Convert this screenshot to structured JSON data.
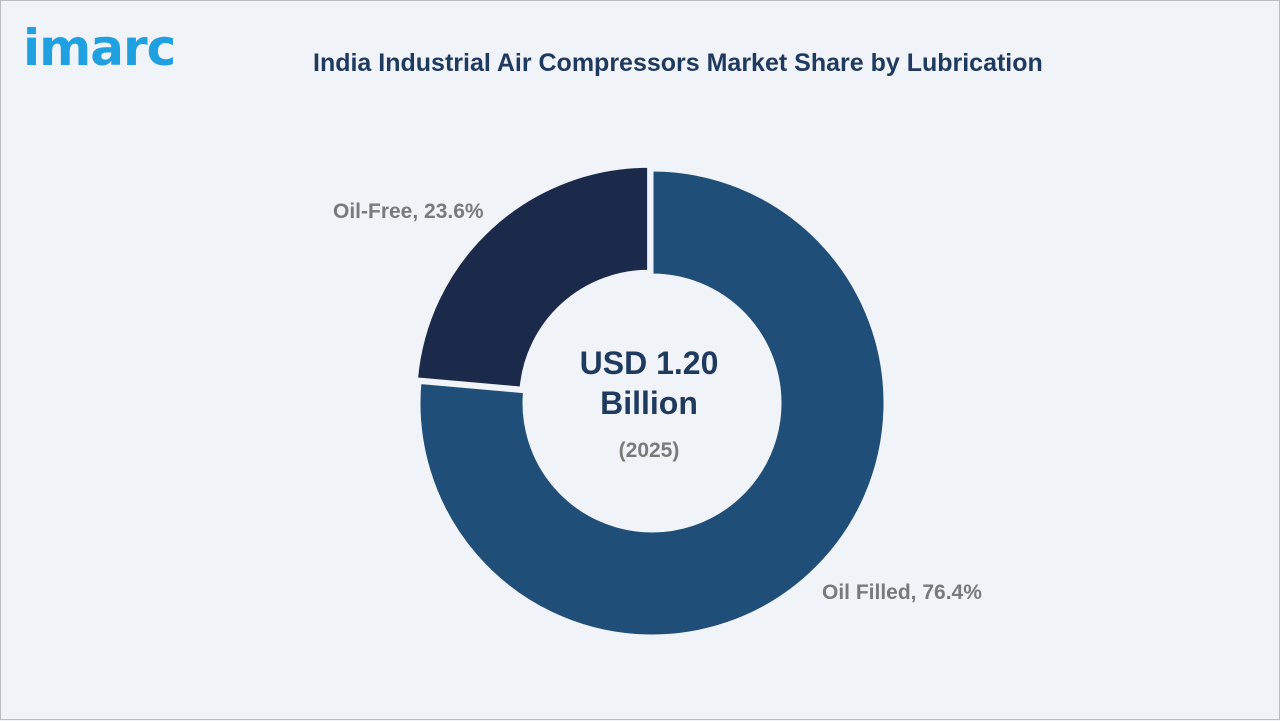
{
  "brand": {
    "logo_text": "imarc",
    "logo_color": "#1fa0e0"
  },
  "chart_data": {
    "type": "pie",
    "variant": "donut",
    "title": "India Industrial Air Compressors Market Share by Lubrication",
    "center_value": "USD 1.20 Billion",
    "center_year": "(2025)",
    "slices": [
      {
        "label": "Oil Filled",
        "value": 76.4,
        "display": "Oil Filled, 76.4%",
        "color": "#1f4e79"
      },
      {
        "label": "Oil-Free",
        "value": 23.6,
        "display": "Oil-Free, 23.6%",
        "color": "#1b2a4a"
      }
    ]
  }
}
